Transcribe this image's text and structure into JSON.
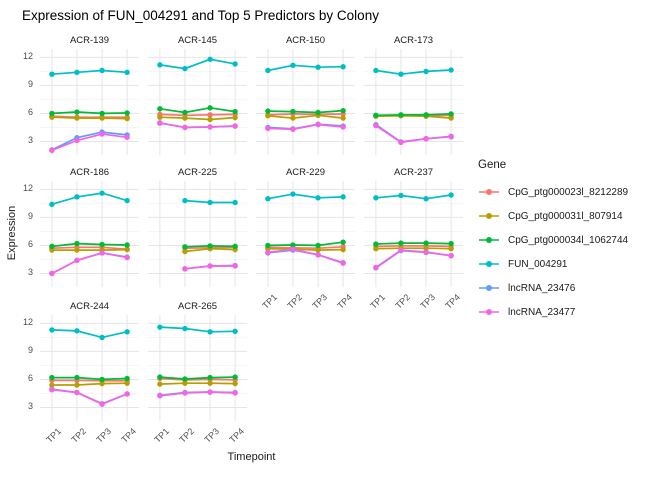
{
  "title": "Expression of FUN_004291 and Top 5 Predictors by Colony",
  "axes": {
    "x_title": "Timepoint",
    "y_title": "Expression",
    "x_ticks": [
      "TP1",
      "TP2",
      "TP3",
      "TP4"
    ],
    "y_ticks": [
      3,
      6,
      9,
      12
    ]
  },
  "legend": {
    "title": "Gene",
    "entries": [
      {
        "label": "CpG_ptg000023l_8212289",
        "color": "#F8766D"
      },
      {
        "label": "CpG_ptg000031l_807914",
        "color": "#B79F00"
      },
      {
        "label": "CpG_ptg000034l_1062744",
        "color": "#00BA38"
      },
      {
        "label": "FUN_004291",
        "color": "#00BFC4"
      },
      {
        "label": "lncRNA_23476",
        "color": "#619CFF"
      },
      {
        "label": "lncRNA_23477",
        "color": "#F564E3"
      }
    ]
  },
  "chart_data": {
    "type": "line",
    "facet_by": "Colony",
    "x": [
      "TP1",
      "TP2",
      "TP3",
      "TP4"
    ],
    "xlabel": "Timepoint",
    "ylabel": "Expression",
    "ylim": [
      1.55,
      12.9
    ],
    "y_major_gridlines": [
      3,
      6,
      9,
      12
    ],
    "y_minor_gridlines": [
      4.5,
      7.5,
      10.5
    ],
    "grid": "on",
    "legend_position": "right",
    "facets": [
      {
        "name": "ACR-139",
        "series": {
          "CpG_ptg000023l_8212289": [
            5.7,
            5.6,
            5.6,
            5.6
          ],
          "CpG_ptg000031l_807914": [
            5.6,
            5.5,
            5.5,
            5.45
          ],
          "CpG_ptg000034l_1062744": [
            6.0,
            6.15,
            6.0,
            6.05
          ],
          "FUN_004291": [
            10.2,
            10.4,
            10.6,
            10.4
          ],
          "lncRNA_23476": [
            2.1,
            3.4,
            4.0,
            3.7
          ],
          "lncRNA_23477": [
            2.05,
            3.1,
            3.8,
            3.45
          ]
        }
      },
      {
        "name": "ACR-145",
        "series": {
          "CpG_ptg000023l_8212289": [
            5.9,
            5.8,
            5.85,
            5.9
          ],
          "CpG_ptg000031l_807914": [
            5.6,
            5.5,
            5.35,
            5.55
          ],
          "CpG_ptg000034l_1062744": [
            6.5,
            6.1,
            6.6,
            6.2
          ],
          "FUN_004291": [
            11.2,
            10.8,
            11.8,
            11.3
          ],
          "lncRNA_23476": [
            5.0,
            4.5,
            4.55,
            4.65
          ],
          "lncRNA_23477": [
            4.95,
            4.5,
            4.55,
            4.65
          ]
        }
      },
      {
        "name": "ACR-150",
        "series": {
          "CpG_ptg000023l_8212289": [
            5.85,
            5.95,
            5.9,
            5.95
          ],
          "CpG_ptg000031l_807914": [
            5.75,
            5.5,
            5.8,
            5.5
          ],
          "CpG_ptg000034l_1062744": [
            6.25,
            6.2,
            6.1,
            6.3
          ],
          "FUN_004291": [
            10.6,
            11.15,
            10.95,
            11.0
          ],
          "lncRNA_23476": [
            4.5,
            4.35,
            4.85,
            4.65
          ],
          "lncRNA_23477": [
            4.4,
            4.3,
            4.8,
            4.55
          ]
        }
      },
      {
        "name": "ACR-173",
        "series": {
          "CpG_ptg000023l_8212289": [
            5.75,
            5.8,
            5.75,
            5.8
          ],
          "CpG_ptg000031l_807914": [
            5.7,
            5.75,
            5.7,
            5.5
          ],
          "CpG_ptg000034l_1062744": [
            5.8,
            5.85,
            5.85,
            5.95
          ],
          "FUN_004291": [
            10.6,
            10.2,
            10.5,
            10.65
          ],
          "lncRNA_23476": [
            4.8,
            2.95,
            3.3,
            3.55
          ],
          "lncRNA_23477": [
            4.7,
            2.9,
            3.3,
            3.5
          ]
        }
      },
      {
        "name": "ACR-186",
        "series": {
          "CpG_ptg000023l_8212289": [
            5.7,
            5.8,
            5.8,
            5.6
          ],
          "CpG_ptg000031l_807914": [
            5.5,
            5.5,
            5.5,
            5.55
          ],
          "CpG_ptg000034l_1062744": [
            5.9,
            6.2,
            6.1,
            6.05
          ],
          "FUN_004291": [
            10.4,
            11.2,
            11.6,
            10.8
          ],
          "lncRNA_23476": [
            3.0,
            4.4,
            5.2,
            4.75
          ],
          "lncRNA_23477": [
            3.0,
            4.4,
            5.2,
            4.7
          ]
        }
      },
      {
        "name": "ACR-225",
        "series": {
          "CpG_ptg000023l_8212289": [
            null,
            5.7,
            5.75,
            5.8
          ],
          "CpG_ptg000031l_807914": [
            null,
            5.35,
            5.65,
            5.55
          ],
          "CpG_ptg000034l_1062744": [
            null,
            5.85,
            5.95,
            5.9
          ],
          "FUN_004291": [
            null,
            10.8,
            10.6,
            10.6
          ],
          "lncRNA_23476": [
            null,
            3.5,
            3.8,
            3.85
          ],
          "lncRNA_23477": [
            null,
            3.5,
            3.8,
            3.8
          ]
        }
      },
      {
        "name": "ACR-229",
        "series": {
          "CpG_ptg000023l_8212289": [
            5.8,
            5.75,
            5.7,
            5.85
          ],
          "CpG_ptg000031l_807914": [
            5.65,
            5.6,
            5.5,
            5.55
          ],
          "CpG_ptg000034l_1062744": [
            6.0,
            6.05,
            6.0,
            6.35
          ],
          "FUN_004291": [
            11.0,
            11.5,
            11.1,
            11.2
          ],
          "lncRNA_23476": [
            5.2,
            5.5,
            5.0,
            4.15
          ],
          "lncRNA_23477": [
            5.25,
            5.6,
            5.0,
            4.1
          ]
        }
      },
      {
        "name": "ACR-237",
        "series": {
          "CpG_ptg000023l_8212289": [
            5.9,
            5.95,
            5.95,
            5.9
          ],
          "CpG_ptg000031l_807914": [
            5.65,
            5.7,
            5.7,
            5.65
          ],
          "CpG_ptg000034l_1062744": [
            6.15,
            6.25,
            6.25,
            6.2
          ],
          "FUN_004291": [
            11.1,
            11.35,
            11.0,
            11.4
          ],
          "lncRNA_23476": [
            3.6,
            5.45,
            5.25,
            4.9
          ],
          "lncRNA_23477": [
            3.65,
            5.5,
            5.3,
            4.9
          ]
        }
      },
      {
        "name": "ACR-244",
        "series": {
          "CpG_ptg000023l_8212289": [
            5.9,
            5.9,
            5.85,
            5.85
          ],
          "CpG_ptg000031l_807914": [
            5.4,
            5.4,
            5.55,
            5.6
          ],
          "CpG_ptg000034l_1062744": [
            6.2,
            6.2,
            6.0,
            6.1
          ],
          "FUN_004291": [
            11.3,
            11.2,
            10.5,
            11.1
          ],
          "lncRNA_23476": [
            4.95,
            4.6,
            3.4,
            4.45
          ],
          "lncRNA_23477": [
            4.9,
            4.6,
            3.35,
            4.45
          ]
        }
      },
      {
        "name": "ACR-265",
        "series": {
          "CpG_ptg000023l_8212289": [
            6.1,
            5.95,
            6.0,
            5.95
          ],
          "CpG_ptg000031l_807914": [
            5.5,
            5.6,
            5.6,
            5.55
          ],
          "CpG_ptg000034l_1062744": [
            6.25,
            6.05,
            6.2,
            6.25
          ],
          "FUN_004291": [
            11.6,
            11.45,
            11.1,
            11.15
          ],
          "lncRNA_23476": [
            4.3,
            4.6,
            4.65,
            4.6
          ],
          "lncRNA_23477": [
            4.25,
            4.55,
            4.65,
            4.55
          ]
        }
      }
    ]
  },
  "colors": {
    "grid_major": "#E5E5E5",
    "grid_minor": "#F0F0F0",
    "tick_text": "#4D4D4D"
  }
}
